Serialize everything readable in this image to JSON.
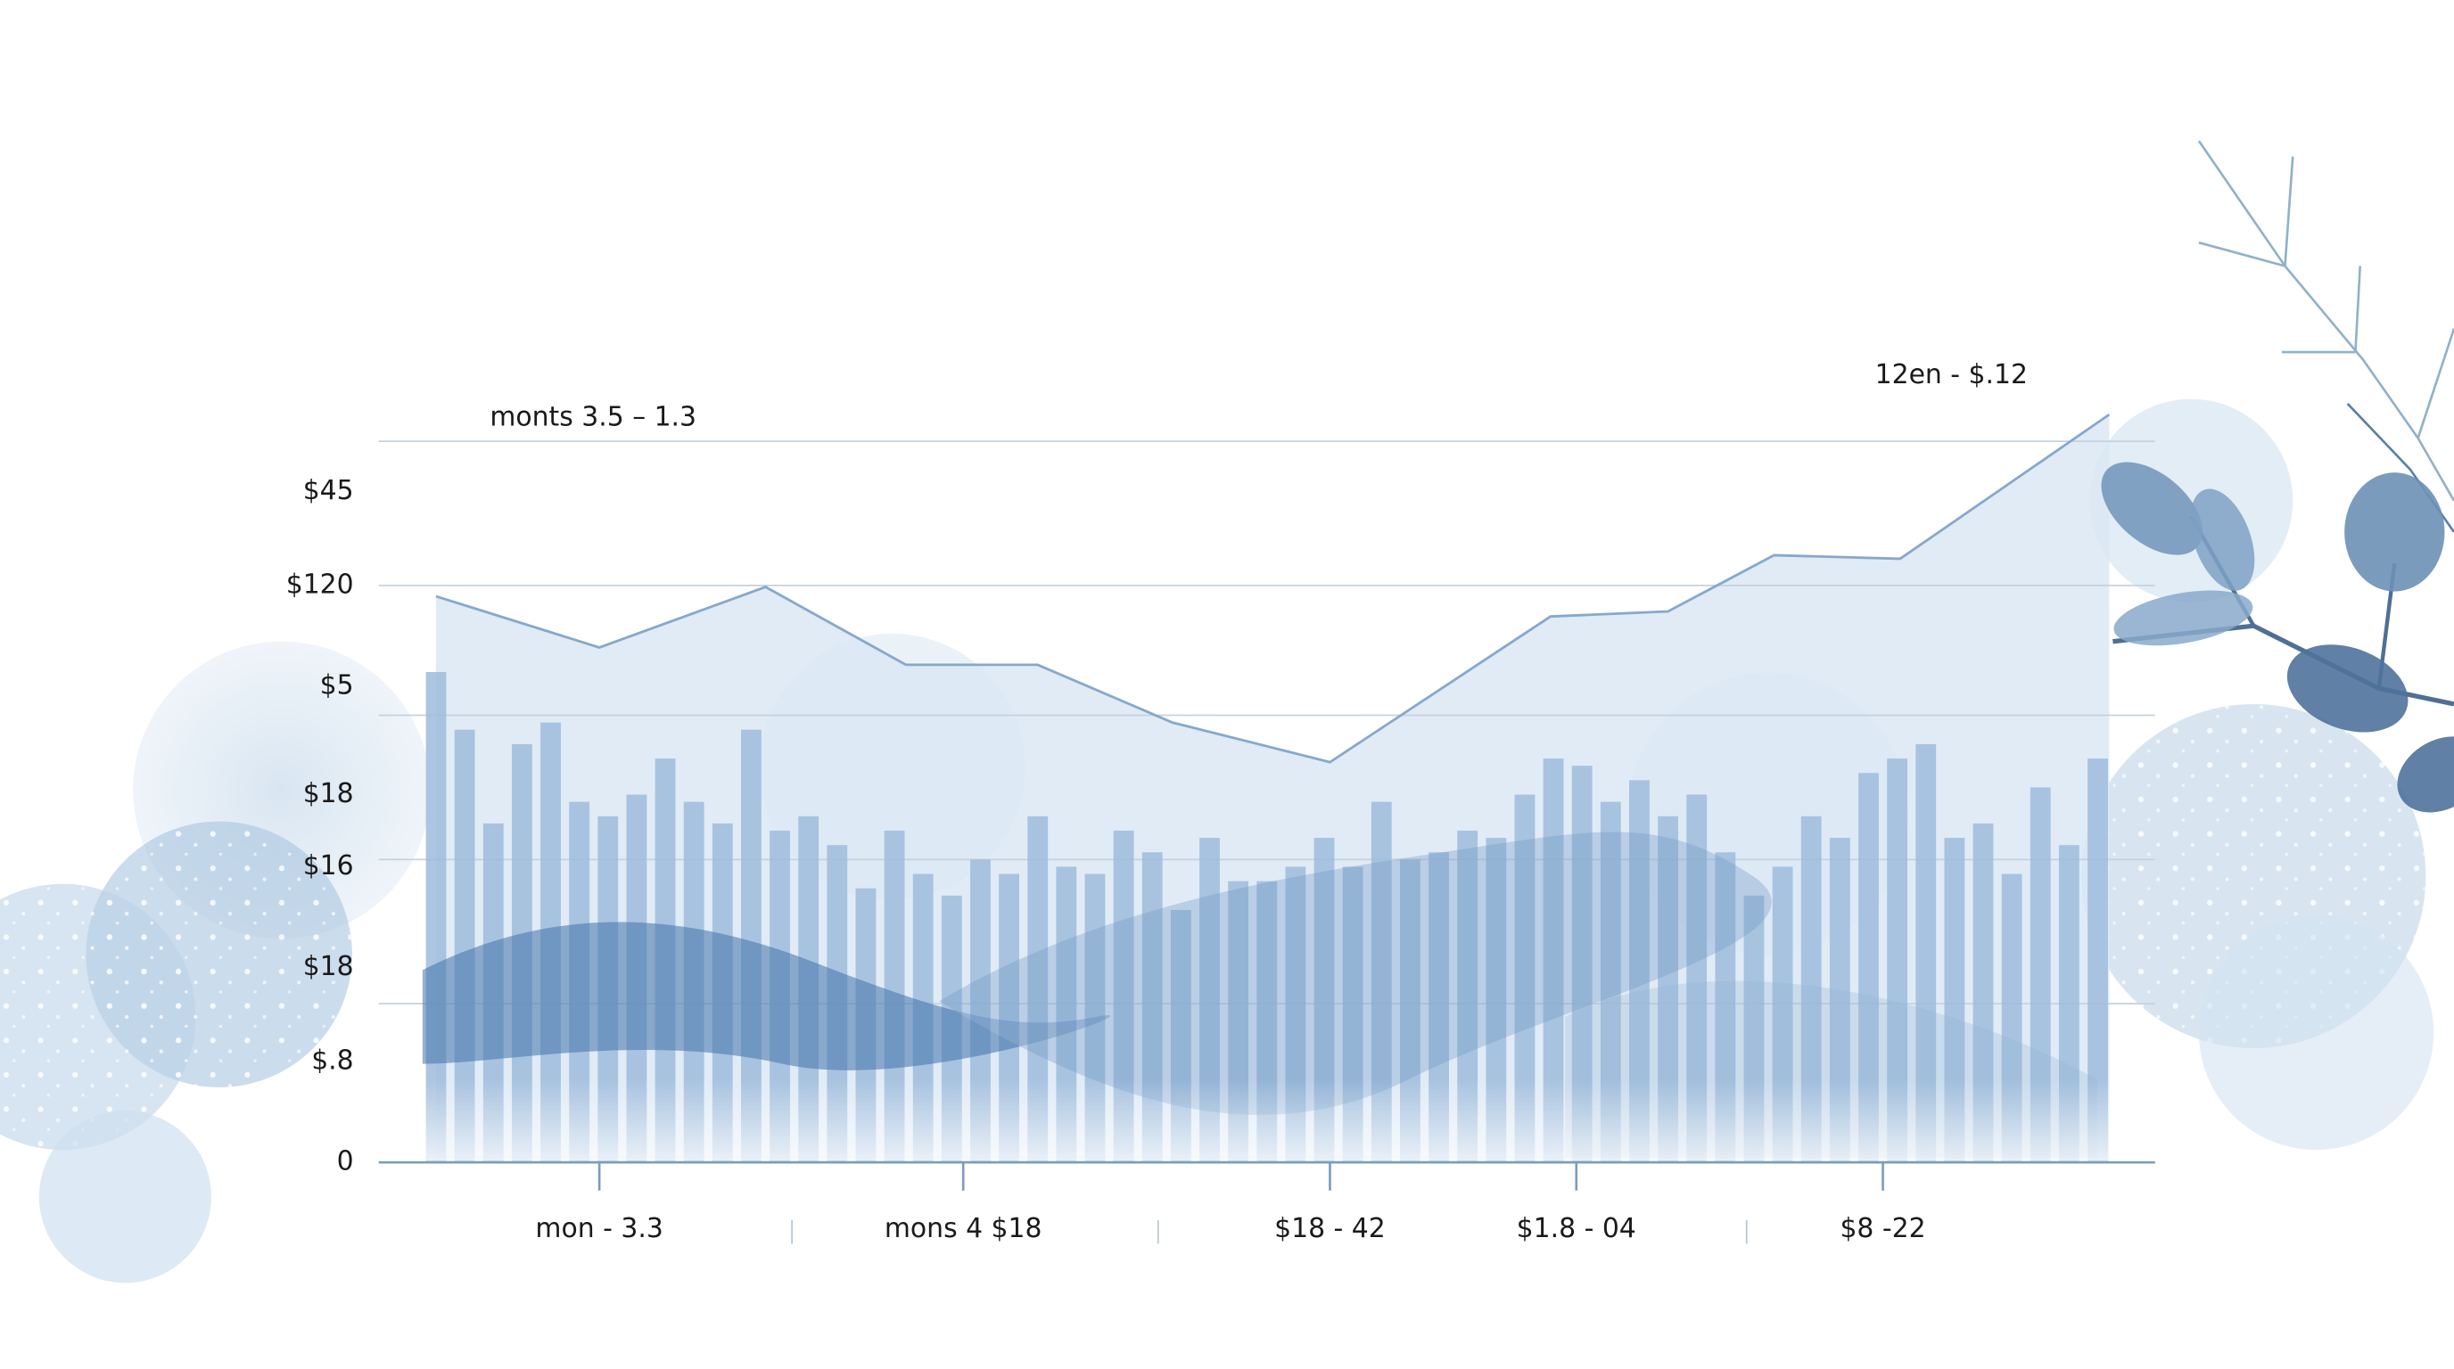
{
  "chart_data": {
    "type": "bar",
    "annotations": [
      "monts 3.5 – 1.3",
      "12en - $.12"
    ],
    "xlim": [
      -2,
      60
    ],
    "xticks": [
      {
        "value": 5.7,
        "label": "mon - 3.3"
      },
      {
        "value": 18.4,
        "label": "mons 4 $18"
      },
      {
        "value": 31.2,
        "label": "$18 - 42"
      },
      {
        "value": 39.8,
        "label": "$1.8 - 04"
      },
      {
        "value": 50.5,
        "label": "$8 -22"
      }
    ],
    "ylim": [
      0,
      105
    ],
    "yticks": [
      {
        "value": 93,
        "label": "$45"
      },
      {
        "value": 80,
        "label": "$120"
      },
      {
        "value": 66,
        "label": "$5"
      },
      {
        "value": 51,
        "label": "$18"
      },
      {
        "value": 41,
        "label": "$16"
      },
      {
        "value": 27,
        "label": "$18"
      },
      {
        "value": 14,
        "label": "$.8"
      },
      0
    ],
    "grid_lines": [
      100,
      80,
      62,
      42,
      22
    ],
    "grid": true,
    "color": "#9dbcdc",
    "values": [
      68,
      60,
      47,
      58,
      61,
      50,
      48,
      51,
      56,
      50,
      47,
      60,
      46,
      48,
      44,
      38,
      46,
      40,
      37,
      42,
      40,
      48,
      41,
      40,
      46,
      43,
      35,
      45,
      39,
      39,
      41,
      45,
      41,
      50,
      42,
      43,
      46,
      45,
      51,
      56,
      55,
      50,
      53,
      48,
      51,
      43,
      37,
      41,
      48,
      45,
      54,
      56,
      58,
      45,
      47,
      40,
      52,
      44,
      56
    ],
    "line": {
      "color": "#86a8cb",
      "fill": "#dbe8f4",
      "x": [
        0,
        5.7,
        11.5,
        16.4,
        21.0,
        25.7,
        31.2,
        38.9,
        43.0,
        46.7,
        51.1,
        58.4
      ],
      "values": [
        78.5,
        71.4,
        79.8,
        69.0,
        69.0,
        61.0,
        55.5,
        75.7,
        76.4,
        84.2,
        83.7,
        103.7
      ]
    }
  }
}
